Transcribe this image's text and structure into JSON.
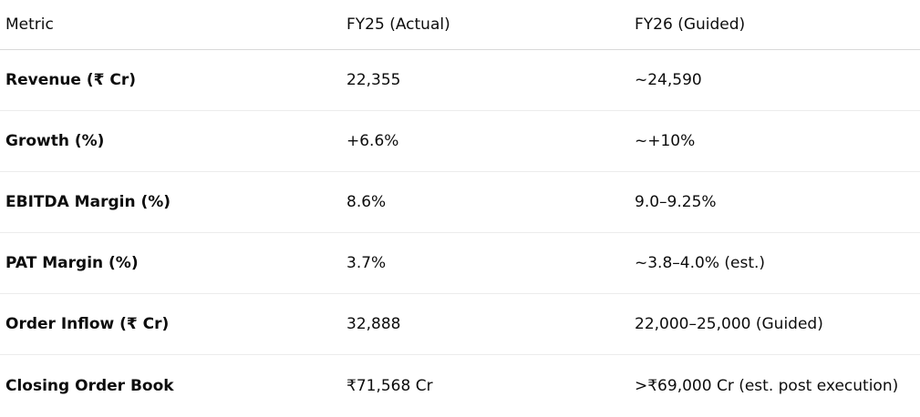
{
  "table": {
    "headers": [
      "Metric",
      "FY25 (Actual)",
      "FY26 (Guided)"
    ],
    "rows": [
      [
        "Revenue (₹ Cr)",
        "22,355",
        "~24,590"
      ],
      [
        "Growth (%)",
        "+6.6%",
        "~+10%"
      ],
      [
        "EBITDA Margin (%)",
        "8.6%",
        "9.0–9.25%"
      ],
      [
        "PAT Margin (%)",
        "3.7%",
        "~3.8–4.0% (est.)"
      ],
      [
        "Order Inflow (₹ Cr)",
        "32,888",
        "22,000–25,000 (Guided)"
      ],
      [
        "Closing Order Book",
        "₹71,568 Cr",
        ">₹69,000 Cr (est. post execution)"
      ]
    ]
  }
}
